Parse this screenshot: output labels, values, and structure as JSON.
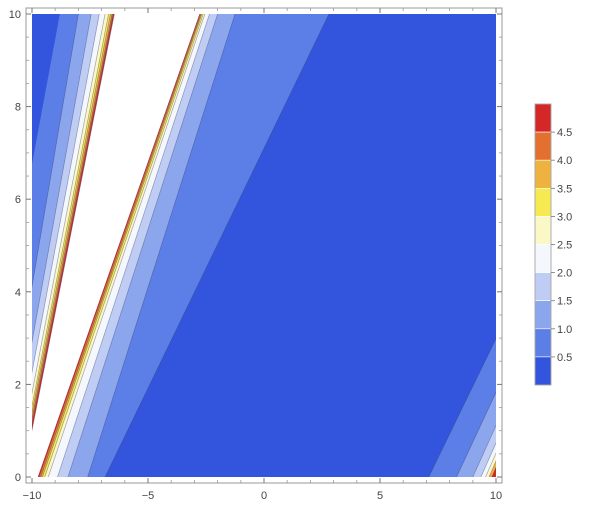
{
  "chart_data": {
    "type": "contour",
    "title": "",
    "xlabel": "",
    "ylabel": "",
    "xlim": [
      -10,
      10
    ],
    "ylim": [
      0,
      10
    ],
    "x_ticks": [
      -10,
      -5,
      0,
      5,
      10
    ],
    "x_tick_labels": [
      "−10",
      "−5",
      "0",
      "5",
      "10"
    ],
    "y_ticks": [
      0,
      2,
      4,
      6,
      8,
      10
    ],
    "y_tick_labels": [
      "0",
      "2",
      "4",
      "6",
      "8",
      "10"
    ],
    "contour_levels": [
      0.5,
      1.0,
      1.5,
      2.0,
      2.5,
      3.0,
      3.5,
      4.0,
      4.5
    ],
    "legend": {
      "placement": "right",
      "labels": [
        "4.5",
        "4.0",
        "3.5",
        "3.0",
        "2.5",
        "2.0",
        "1.5",
        "1.0",
        "0.5"
      ]
    },
    "band_colors": [
      "#3355dd",
      "#5b7fe6",
      "#8ca6ee",
      "#bfcdf4",
      "#f4f7fb",
      "#fbf8c8",
      "#f6ea52",
      "#eeb33f",
      "#e3702f",
      "#d42828"
    ],
    "diagonal_bands": [
      {
        "x_at_y0": -10.0,
        "x_at_y10": -2.7,
        "fill": "#ffffff"
      },
      {
        "x_at_y0": -9.45,
        "x_at_y10": -2.6,
        "fill": "#5b7fe6"
      },
      {
        "x_at_y0": -8.9,
        "x_at_y10": -2.35,
        "fill": "#8ca6ee"
      },
      {
        "x_at_y0": -8.45,
        "x_at_y10": -2.0,
        "fill": "#bfcdf4"
      },
      {
        "x_at_y0": -7.6,
        "x_at_y10": -1.25,
        "fill": "#5b7fe6"
      },
      {
        "x_at_y0": -6.85,
        "x_at_y10": 2.8,
        "fill": "#3355dd"
      }
    ]
  }
}
